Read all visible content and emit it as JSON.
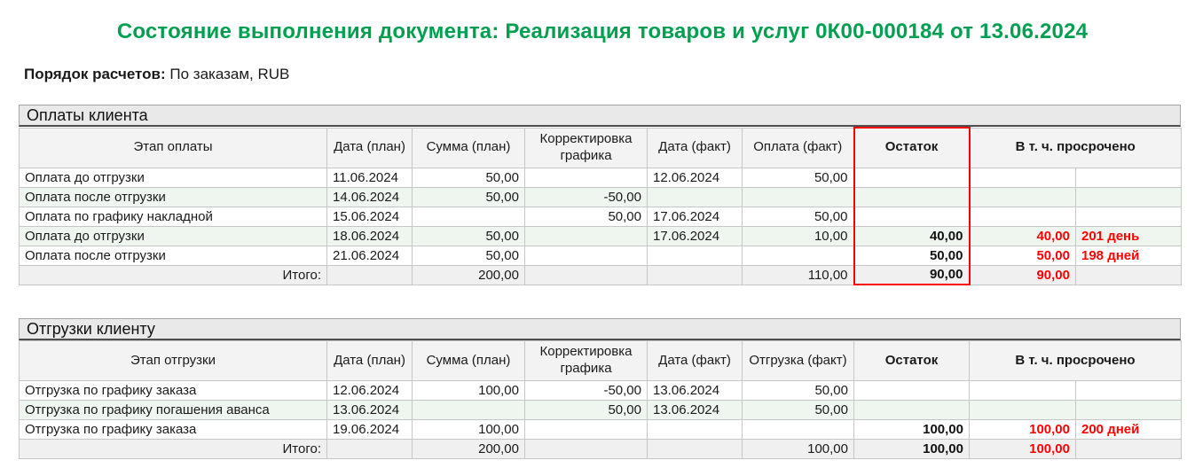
{
  "title": "Состояние выполнения документа: Реализация товаров и услуг 0К00-000184 от 13.06.2024",
  "settlement": {
    "label": "Порядок расчетов:",
    "value": "По заказам, RUB"
  },
  "colors": {
    "title_green": "#00a050",
    "overdue_red": "#ff0000",
    "remainder_frame": "#ff0000",
    "section_bar_bg": "#e9e9e9",
    "header_row_bg": "#f3f3f3",
    "alt_row_bg": "#eff6ef",
    "total_row_bg": "#f0f0f0"
  },
  "tables": [
    {
      "section_title": "Оплаты клиента",
      "headers": [
        "Этап оплаты",
        "Дата (план)",
        "Сумма (план)",
        "Корректировка графика",
        "Дата (факт)",
        "Оплата (факт)",
        "Остаток",
        "В т. ч. просрочено"
      ],
      "rows": [
        [
          "Оплата до отгрузки",
          "11.06.2024",
          "50,00",
          "",
          "12.06.2024",
          "50,00",
          "",
          "",
          ""
        ],
        [
          "Оплата после отгрузки",
          "14.06.2024",
          "50,00",
          "-50,00",
          "",
          "",
          "",
          "",
          ""
        ],
        [
          "Оплата по графику накладной",
          "15.06.2024",
          "",
          "50,00",
          "17.06.2024",
          "50,00",
          "",
          "",
          ""
        ],
        [
          "Оплата до отгрузки",
          "18.06.2024",
          "50,00",
          "",
          "17.06.2024",
          "10,00",
          "40,00",
          "40,00",
          "201 день"
        ],
        [
          "Оплата после отгрузки",
          "21.06.2024",
          "50,00",
          "",
          "",
          "",
          "50,00",
          "50,00",
          "198 дней"
        ]
      ],
      "total_row": [
        "Итого:",
        "",
        "200,00",
        "",
        "",
        "110,00",
        "90,00",
        "90,00",
        ""
      ]
    },
    {
      "section_title": "Отгрузки клиенту",
      "headers": [
        "Этап отгрузки",
        "Дата (план)",
        "Сумма (план)",
        "Корректировка графика",
        "Дата (факт)",
        "Отгрузка (факт)",
        "Остаток",
        "В т. ч. просрочено"
      ],
      "rows": [
        [
          "Отгрузка по графику заказа",
          "12.06.2024",
          "100,00",
          "-50,00",
          "13.06.2024",
          "50,00",
          "",
          "",
          ""
        ],
        [
          "Отгрузка по графику погашения аванса",
          "13.06.2024",
          "",
          "50,00",
          "13.06.2024",
          "50,00",
          "",
          "",
          ""
        ],
        [
          "Отгрузка по графику заказа",
          "19.06.2024",
          "100,00",
          "",
          "",
          "",
          "100,00",
          "100,00",
          "200 дней"
        ]
      ],
      "total_row": [
        "Итого:",
        "",
        "200,00",
        "",
        "",
        "100,00",
        "100,00",
        "100,00",
        ""
      ]
    }
  ]
}
